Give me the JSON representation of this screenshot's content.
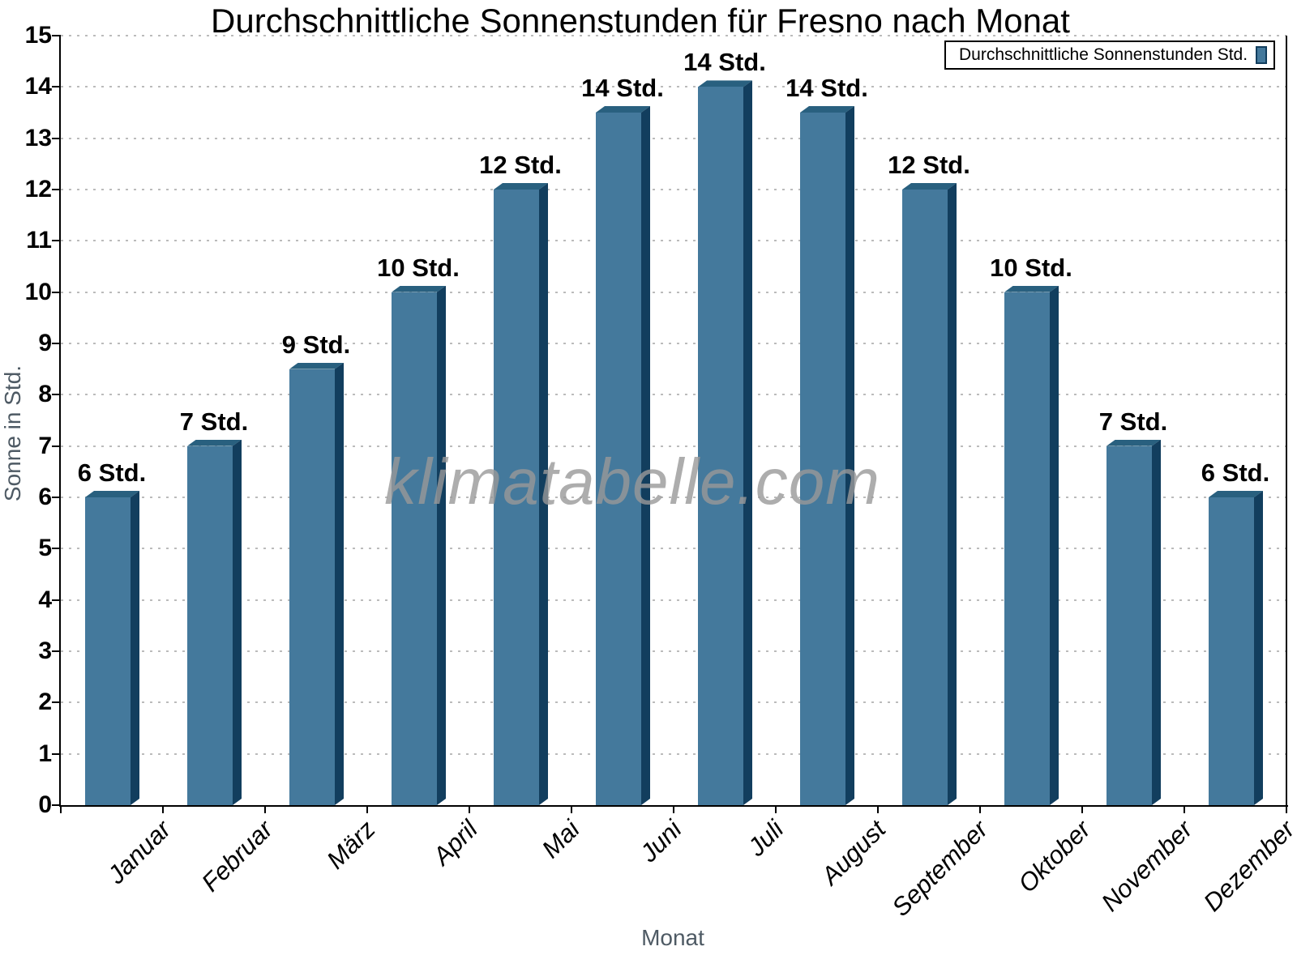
{
  "watermark": "klimatabelle.com",
  "legend": {
    "label": "Durchschnittliche Sonnenstunden Std."
  },
  "chart_data": {
    "type": "bar",
    "title": "Durchschnittliche Sonnenstunden für Fresno nach Monat",
    "xlabel": "Monat",
    "ylabel": "Sonne in Std.",
    "ylim": [
      0,
      15
    ],
    "yticks": [
      0,
      1,
      2,
      3,
      4,
      5,
      6,
      7,
      8,
      9,
      10,
      11,
      12,
      13,
      14,
      15
    ],
    "grid": "horizontal-dotted",
    "legend_position": "top-right",
    "categories": [
      "Januar",
      "Februar",
      "März",
      "April",
      "Mai",
      "Juni",
      "Juli",
      "August",
      "September",
      "Oktober",
      "November",
      "Dezember"
    ],
    "series": [
      {
        "name": "Durchschnittliche Sonnenstunden Std.",
        "values": [
          6,
          7,
          8.5,
          10,
          12,
          13.5,
          14,
          13.5,
          12,
          10,
          7,
          6
        ],
        "bar_labels": [
          "6 Std.",
          "7 Std.",
          "9 Std.",
          "10 Std.",
          "12 Std.",
          "14 Std.",
          "14 Std.",
          "14 Std.",
          "12 Std.",
          "10 Std.",
          "7 Std.",
          "6 Std."
        ]
      }
    ]
  },
  "colors": {
    "bar_front": "#44799C",
    "bar_top": "#29607F",
    "bar_side": "#123E5E",
    "grid": "#BBBBBB",
    "axis": "#000000",
    "muted_text": "#4E5A64",
    "watermark": "#999999"
  }
}
